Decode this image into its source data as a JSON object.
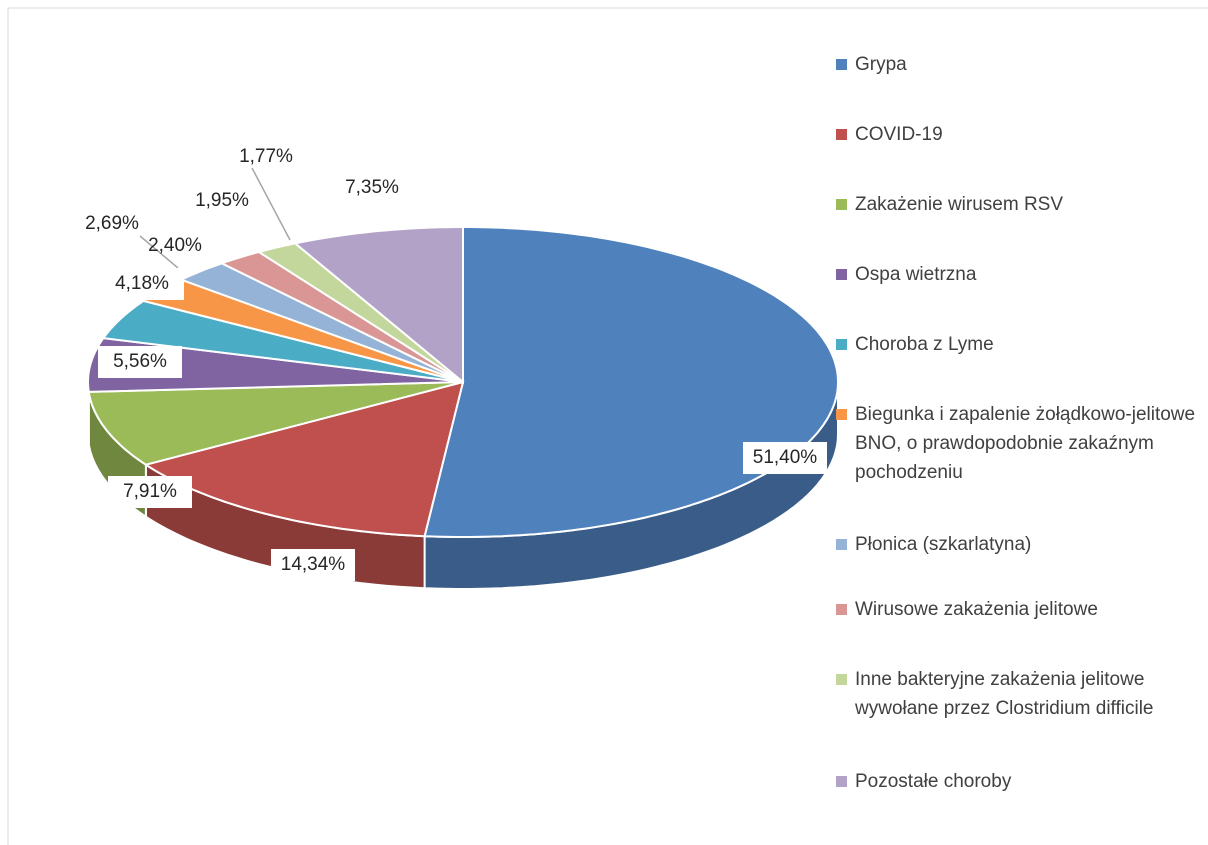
{
  "chart_data": {
    "type": "pie",
    "categories": [
      "Grypa",
      "COVID-19",
      "Zakażenie wirusem RSV",
      "Ospa wietrzna",
      "Choroba z Lyme",
      "Biegunka i zapalenie żołądkowo-jelitowe BNO, o prawdopodobnie zakaźnym pochodzeniu",
      "Płonica (szkarlatyna)",
      "Wirusowe zakażenia jelitowe",
      "Inne bakteryjne zakażenia jelitowe wywołane przez Clostridium difficile",
      "Pozostałe choroby"
    ],
    "values": [
      51.4,
      14.34,
      7.91,
      5.56,
      4.18,
      2.69,
      2.4,
      1.95,
      1.77,
      7.35
    ],
    "value_labels": [
      "51,40%",
      "14,34%",
      "7,91%",
      "5,56%",
      "4,18%",
      "2,69%",
      "2,40%",
      "1,95%",
      "1,77%",
      "7,35%"
    ],
    "colors": [
      "#4f81bd",
      "#c0504d",
      "#9bbb59",
      "#8064a2",
      "#4bacc6",
      "#f79646",
      "#95b3d7",
      "#d99694",
      "#c3d69b",
      "#b2a2c7"
    ],
    "legend": "right"
  }
}
